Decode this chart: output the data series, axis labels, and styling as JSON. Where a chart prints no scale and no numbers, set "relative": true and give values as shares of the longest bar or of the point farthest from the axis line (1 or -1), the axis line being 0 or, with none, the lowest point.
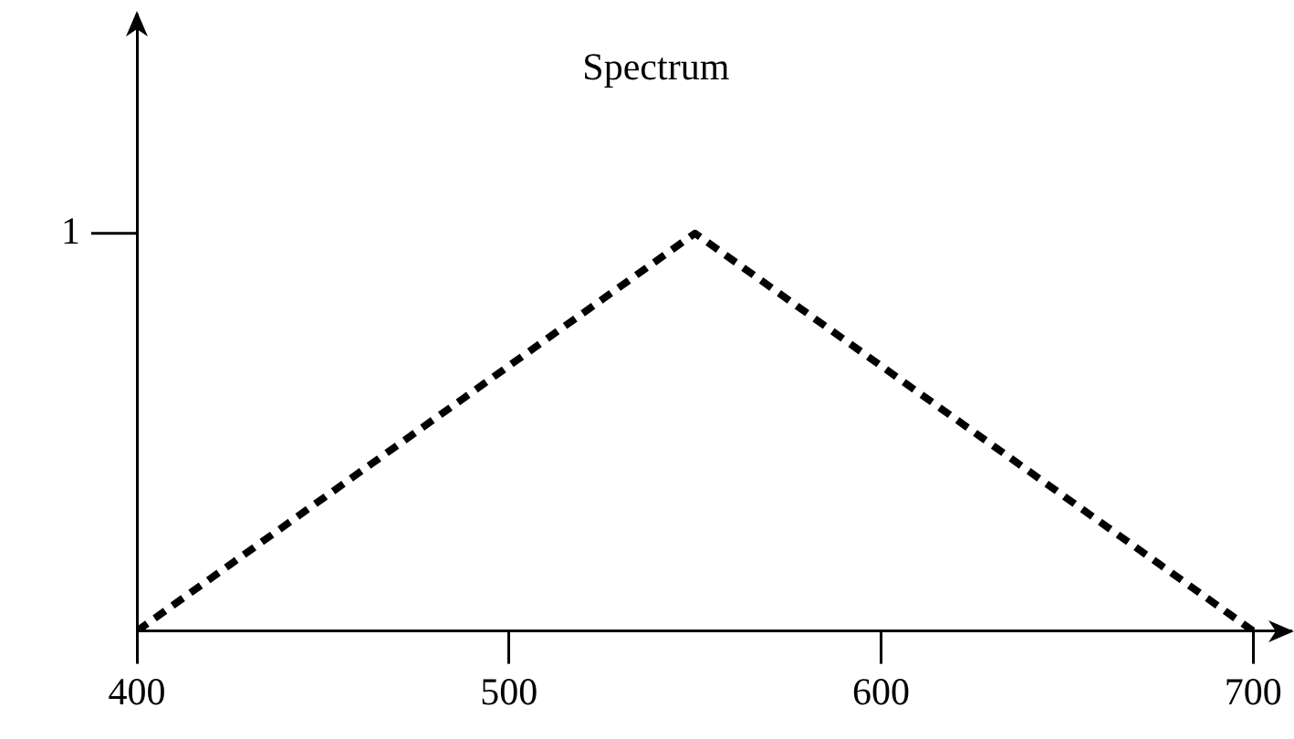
{
  "chart_data": {
    "type": "line",
    "title": "Spectrum",
    "x": [
      400,
      550,
      700
    ],
    "series": [
      {
        "color": "#000000",
        "values": [
          0,
          1,
          0
        ]
      }
    ],
    "xlim": [
      400,
      710
    ],
    "xticks": [
      400,
      500,
      600,
      700
    ],
    "relative": true,
    "annotations": [
      "1"
    ],
    "grid": false,
    "legend": false,
    "marker": "none",
    "line_style": "dashed"
  }
}
